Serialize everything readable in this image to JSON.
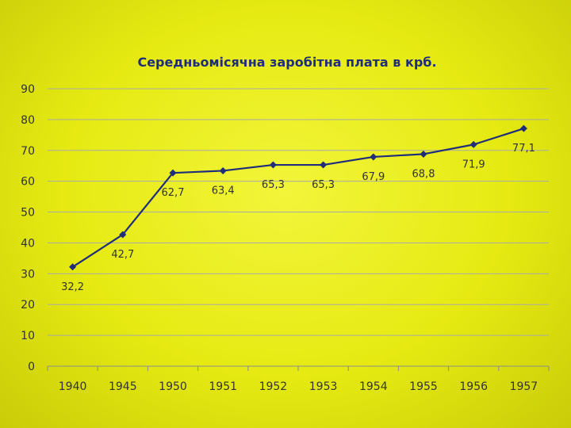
{
  "chart_data": {
    "type": "line",
    "title": "Середньомісячна заробітна плата в крб.",
    "xlabel": "",
    "ylabel": "",
    "categories": [
      "1940",
      "1945",
      "1950",
      "1951",
      "1952",
      "1953",
      "1954",
      "1955",
      "1956",
      "1957"
    ],
    "series": [
      {
        "values": [
          32.2,
          42.7,
          62.7,
          63.4,
          65.3,
          65.3,
          67.9,
          68.8,
          71.9,
          77.1
        ],
        "labels": [
          "32,2",
          "42,7",
          "62,7",
          "63,4",
          "65,3",
          "65,3",
          "67,9",
          "68,8",
          "71,9",
          "77,1"
        ],
        "color": "#1f2d7a"
      }
    ],
    "ylim": [
      0,
      90
    ],
    "yticks": [
      "0",
      "10",
      "20",
      "30",
      "40",
      "50",
      "60",
      "70",
      "80",
      "90"
    ],
    "grid": true,
    "legend": "none"
  }
}
